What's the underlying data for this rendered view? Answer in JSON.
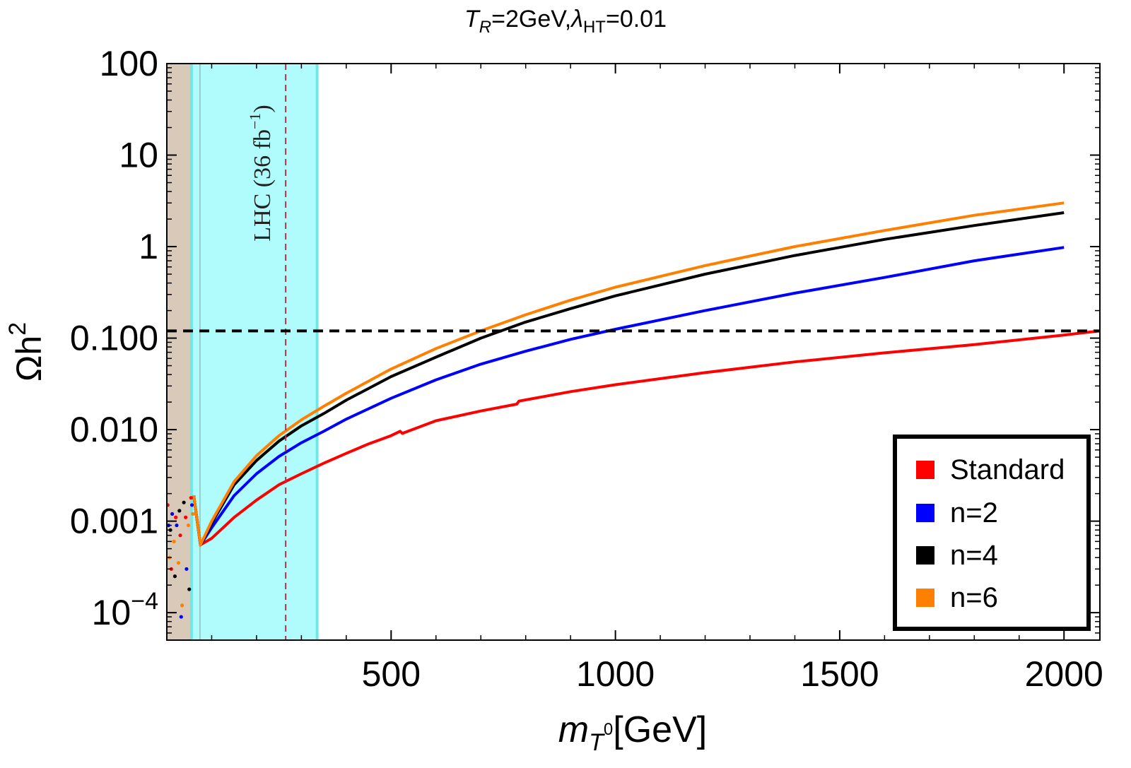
{
  "chart_data": {
    "type": "line",
    "title": {
      "main": "T",
      "sub1": "R",
      "part2": "=2GeV,",
      "lambda": "λ",
      "sub2": "HT",
      "part3": "=0.01"
    },
    "xlabel": {
      "m": "m",
      "sub": "T",
      "sup": "0",
      "unit": "[GeV]"
    },
    "ylabel": {
      "omega": "Ωh",
      "sup": "2"
    },
    "xlim": [
      0,
      2080
    ],
    "ylim_log10": [
      -4.3,
      2
    ],
    "x_ticks": [
      {
        "value": 500,
        "label": "500"
      },
      {
        "value": 1000,
        "label": "1000"
      },
      {
        "value": 1500,
        "label": "1500"
      },
      {
        "value": 2000,
        "label": "2000"
      }
    ],
    "y_ticks": [
      {
        "value": 100,
        "label": "100"
      },
      {
        "value": 10,
        "label": "10"
      },
      {
        "value": 1,
        "label": "1"
      },
      {
        "value": 0.1,
        "label": "0.100"
      },
      {
        "value": 0.01,
        "label": "0.010"
      },
      {
        "value": 0.001,
        "label": "0.001"
      },
      {
        "value": 0.0001,
        "base": "10",
        "exp": "−4"
      }
    ],
    "excluded_region": {
      "x": [
        0,
        60
      ],
      "color": "#d9c9b9"
    },
    "lhc_band": {
      "x": [
        55,
        335
      ],
      "color": "#b0fcfc",
      "edge_color": "#6fe8e8",
      "label": "LHC (36 fb",
      "label_sup": "−1",
      "label_end": ")",
      "marker_x": 265,
      "marker_color": "#b03050"
    },
    "relic_line": {
      "y": 0.12,
      "color": "#000000"
    },
    "series": [
      {
        "name": "Standard",
        "color": "#ff0000",
        "x": [
          60,
          75,
          100,
          150,
          200,
          250,
          300,
          350,
          400,
          450,
          500,
          520,
          525,
          600,
          700,
          780,
          785,
          900,
          1000,
          1200,
          1400,
          1600,
          1800,
          2000,
          2080
        ],
        "y": [
          0.0019,
          0.00055,
          0.00065,
          0.0011,
          0.0017,
          0.0025,
          0.0033,
          0.0043,
          0.0055,
          0.007,
          0.0086,
          0.0096,
          0.0091,
          0.0125,
          0.016,
          0.019,
          0.0205,
          0.026,
          0.031,
          0.042,
          0.055,
          0.069,
          0.085,
          0.108,
          0.12
        ]
      },
      {
        "name": "n=2",
        "color": "#0000ff",
        "x": [
          60,
          75,
          100,
          150,
          200,
          250,
          300,
          350,
          400,
          500,
          600,
          700,
          800,
          900,
          1000,
          1200,
          1400,
          1600,
          1800,
          2000
        ],
        "y": [
          0.0019,
          0.00055,
          0.00085,
          0.0019,
          0.0033,
          0.0051,
          0.0072,
          0.0096,
          0.013,
          0.022,
          0.035,
          0.052,
          0.072,
          0.097,
          0.125,
          0.2,
          0.31,
          0.46,
          0.7,
          0.98
        ]
      },
      {
        "name": "n=4",
        "color": "#000000",
        "x": [
          60,
          75,
          100,
          150,
          200,
          250,
          300,
          350,
          400,
          500,
          600,
          700,
          800,
          900,
          1000,
          1200,
          1400,
          1600,
          1800,
          2000
        ],
        "y": [
          0.0019,
          0.00055,
          0.00095,
          0.0025,
          0.0046,
          0.0075,
          0.011,
          0.015,
          0.021,
          0.038,
          0.062,
          0.1,
          0.15,
          0.21,
          0.29,
          0.5,
          0.8,
          1.2,
          1.7,
          2.35
        ]
      },
      {
        "name": "n=6",
        "color": "#ff8000",
        "x": [
          60,
          75,
          100,
          150,
          200,
          250,
          300,
          350,
          400,
          500,
          600,
          700,
          800,
          900,
          1000,
          1200,
          1400,
          1600,
          1800,
          2000
        ],
        "y": [
          0.0019,
          0.00055,
          0.001,
          0.0027,
          0.0052,
          0.0086,
          0.0128,
          0.018,
          0.025,
          0.046,
          0.077,
          0.12,
          0.18,
          0.26,
          0.36,
          0.62,
          1.0,
          1.5,
          2.2,
          3.0
        ]
      }
    ],
    "legend": {
      "position": "bottom-right",
      "entries": [
        "Standard",
        "n=2",
        "n=4",
        "n=6"
      ]
    }
  }
}
